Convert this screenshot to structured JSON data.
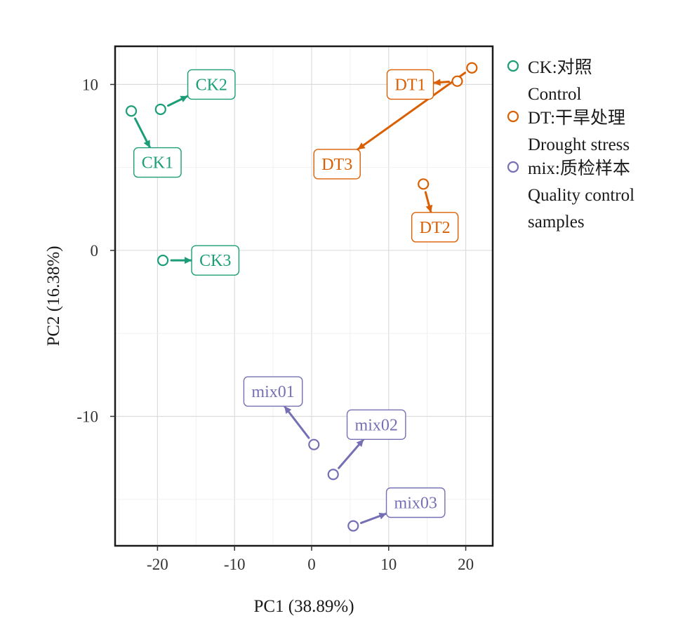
{
  "chart_data": {
    "type": "scatter",
    "title": "",
    "xlabel": "PC1 (38.89%)",
    "ylabel": "PC2 (16.38%)",
    "xlim": [
      -25.5,
      23.5
    ],
    "ylim": [
      -17.8,
      12.3
    ],
    "xticks": [
      -20,
      -10,
      0,
      10,
      20
    ],
    "xtick_labels": [
      "-20",
      "-10",
      "0",
      "10",
      "20"
    ],
    "yticks": [
      -10,
      0,
      10
    ],
    "ytick_labels": [
      "-10",
      "0",
      "10"
    ],
    "grid": true,
    "legend_position": "right",
    "series": [
      {
        "key": "CK",
        "legend_line1": "CK:对照",
        "legend_line2": "Control",
        "color": "#1b9e77",
        "points": [
          {
            "label": "CK1",
            "x": -23.4,
            "y": 8.4,
            "label_x": -20.0,
            "label_y": 5.3
          },
          {
            "label": "CK2",
            "x": -19.6,
            "y": 8.5,
            "label_x": -13.0,
            "label_y": 10.0
          },
          {
            "label": "CK3",
            "x": -19.3,
            "y": -0.6,
            "label_x": -12.5,
            "label_y": -0.6
          }
        ]
      },
      {
        "key": "DT",
        "legend_line1": "DT:干旱处理",
        "legend_line2": "Drought stress",
        "color": "#d95f02",
        "points": [
          {
            "label": "DT1",
            "x": 18.9,
            "y": 10.2,
            "label_x": 12.8,
            "label_y": 10.0
          },
          {
            "label": "DT2",
            "x": 14.5,
            "y": 4.0,
            "label_x": 16.0,
            "label_y": 1.4
          },
          {
            "label": "DT3",
            "x": 20.8,
            "y": 11.0,
            "label_x": 3.3,
            "label_y": 5.2
          }
        ]
      },
      {
        "key": "mix",
        "legend_line1": "mix:质检样本",
        "legend_line2": "Quality control",
        "legend_line3": "samples",
        "color": "#7570b3",
        "points": [
          {
            "label": "mix01",
            "x": 0.3,
            "y": -11.7,
            "label_x": -5.0,
            "label_y": -8.5
          },
          {
            "label": "mix02",
            "x": 2.8,
            "y": -13.5,
            "label_x": 8.4,
            "label_y": -10.5
          },
          {
            "label": "mix03",
            "x": 5.4,
            "y": -16.6,
            "label_x": 13.5,
            "label_y": -15.2
          }
        ]
      }
    ]
  }
}
